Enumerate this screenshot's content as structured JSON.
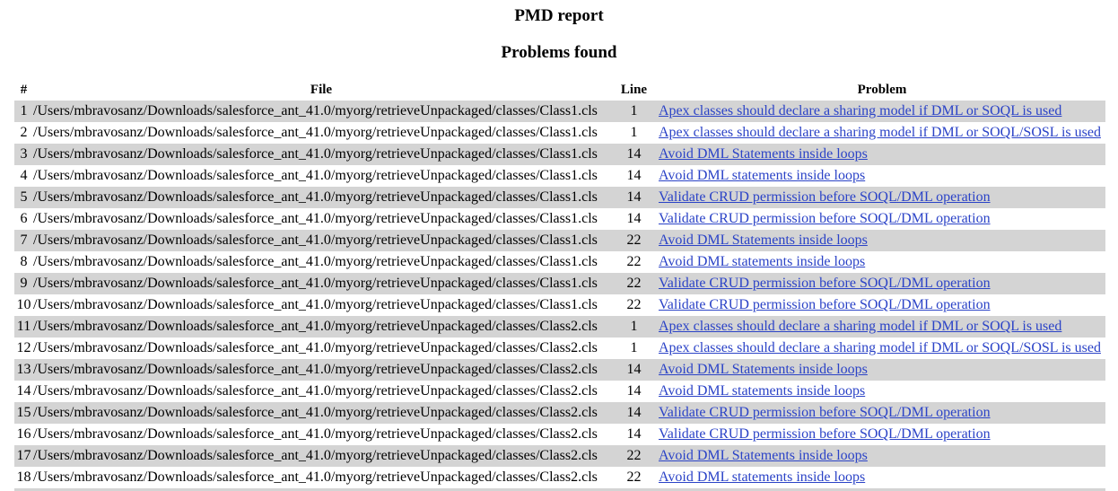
{
  "report": {
    "title": "PMD report",
    "subtitle": "Problems found",
    "columns": {
      "num": "#",
      "file": "File",
      "line": "Line",
      "problem": "Problem"
    },
    "rows": [
      {
        "num": "1",
        "file": "/Users/mbravosanz/Downloads/salesforce_ant_41.0/myorg/retrieveUnpackaged/classes/Class1.cls",
        "line": "1",
        "problem": "Apex classes should declare a sharing model if DML or SOQL is used"
      },
      {
        "num": "2",
        "file": "/Users/mbravosanz/Downloads/salesforce_ant_41.0/myorg/retrieveUnpackaged/classes/Class1.cls",
        "line": "1",
        "problem": "Apex classes should declare a sharing model if DML or SOQL/SOSL is used"
      },
      {
        "num": "3",
        "file": "/Users/mbravosanz/Downloads/salesforce_ant_41.0/myorg/retrieveUnpackaged/classes/Class1.cls",
        "line": "14",
        "problem": "Avoid DML Statements inside loops"
      },
      {
        "num": "4",
        "file": "/Users/mbravosanz/Downloads/salesforce_ant_41.0/myorg/retrieveUnpackaged/classes/Class1.cls",
        "line": "14",
        "problem": "Avoid DML statements inside loops"
      },
      {
        "num": "5",
        "file": "/Users/mbravosanz/Downloads/salesforce_ant_41.0/myorg/retrieveUnpackaged/classes/Class1.cls",
        "line": "14",
        "problem": "Validate CRUD permission before SOQL/DML operation"
      },
      {
        "num": "6",
        "file": "/Users/mbravosanz/Downloads/salesforce_ant_41.0/myorg/retrieveUnpackaged/classes/Class1.cls",
        "line": "14",
        "problem": "Validate CRUD permission before SOQL/DML operation"
      },
      {
        "num": "7",
        "file": "/Users/mbravosanz/Downloads/salesforce_ant_41.0/myorg/retrieveUnpackaged/classes/Class1.cls",
        "line": "22",
        "problem": "Avoid DML Statements inside loops"
      },
      {
        "num": "8",
        "file": "/Users/mbravosanz/Downloads/salesforce_ant_41.0/myorg/retrieveUnpackaged/classes/Class1.cls",
        "line": "22",
        "problem": "Avoid DML statements inside loops"
      },
      {
        "num": "9",
        "file": "/Users/mbravosanz/Downloads/salesforce_ant_41.0/myorg/retrieveUnpackaged/classes/Class1.cls",
        "line": "22",
        "problem": "Validate CRUD permission before SOQL/DML operation"
      },
      {
        "num": "10",
        "file": "/Users/mbravosanz/Downloads/salesforce_ant_41.0/myorg/retrieveUnpackaged/classes/Class1.cls",
        "line": "22",
        "problem": "Validate CRUD permission before SOQL/DML operation"
      },
      {
        "num": "11",
        "file": "/Users/mbravosanz/Downloads/salesforce_ant_41.0/myorg/retrieveUnpackaged/classes/Class2.cls",
        "line": "1",
        "problem": "Apex classes should declare a sharing model if DML or SOQL is used"
      },
      {
        "num": "12",
        "file": "/Users/mbravosanz/Downloads/salesforce_ant_41.0/myorg/retrieveUnpackaged/classes/Class2.cls",
        "line": "1",
        "problem": "Apex classes should declare a sharing model if DML or SOQL/SOSL is used"
      },
      {
        "num": "13",
        "file": "/Users/mbravosanz/Downloads/salesforce_ant_41.0/myorg/retrieveUnpackaged/classes/Class2.cls",
        "line": "14",
        "problem": "Avoid DML Statements inside loops"
      },
      {
        "num": "14",
        "file": "/Users/mbravosanz/Downloads/salesforce_ant_41.0/myorg/retrieveUnpackaged/classes/Class2.cls",
        "line": "14",
        "problem": "Avoid DML statements inside loops"
      },
      {
        "num": "15",
        "file": "/Users/mbravosanz/Downloads/salesforce_ant_41.0/myorg/retrieveUnpackaged/classes/Class2.cls",
        "line": "14",
        "problem": "Validate CRUD permission before SOQL/DML operation"
      },
      {
        "num": "16",
        "file": "/Users/mbravosanz/Downloads/salesforce_ant_41.0/myorg/retrieveUnpackaged/classes/Class2.cls",
        "line": "14",
        "problem": "Validate CRUD permission before SOQL/DML operation"
      },
      {
        "num": "17",
        "file": "/Users/mbravosanz/Downloads/salesforce_ant_41.0/myorg/retrieveUnpackaged/classes/Class2.cls",
        "line": "22",
        "problem": "Avoid DML Statements inside loops"
      },
      {
        "num": "18",
        "file": "/Users/mbravosanz/Downloads/salesforce_ant_41.0/myorg/retrieveUnpackaged/classes/Class2.cls",
        "line": "22",
        "problem": "Avoid DML statements inside loops"
      }
    ]
  },
  "colors": {
    "odd_row_bg": "#d4d4d4",
    "link": "#2b43c7"
  }
}
